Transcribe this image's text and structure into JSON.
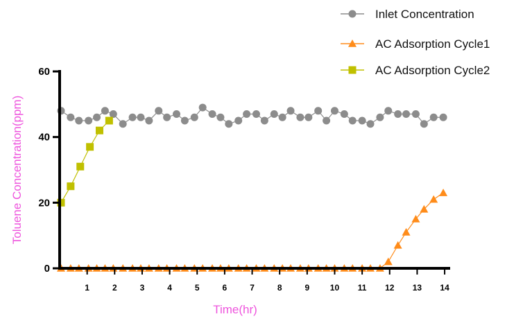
{
  "chart_data": {
    "type": "line",
    "xlabel": "Time(hr)",
    "ylabel": "Toluene Concentration(ppm)",
    "xlim": [
      0,
      14.2
    ],
    "ylim": [
      0,
      60
    ],
    "xticks": [
      1,
      2,
      3,
      4,
      5,
      6,
      7,
      8,
      9,
      10,
      11,
      12,
      13,
      14
    ],
    "yticks": [
      0,
      20,
      40,
      60
    ],
    "legend_position": "top-right",
    "series": [
      {
        "name": "Inlet Concentration",
        "color": "#8c8c8c",
        "marker": "circle",
        "x": [
          0.05,
          0.4,
          0.7,
          1.05,
          1.35,
          1.65,
          1.95,
          2.3,
          2.65,
          2.95,
          3.25,
          3.6,
          3.9,
          4.25,
          4.55,
          4.9,
          5.2,
          5.55,
          5.85,
          6.15,
          6.5,
          6.8,
          7.15,
          7.45,
          7.8,
          8.1,
          8.4,
          8.75,
          9.05,
          9.4,
          9.7,
          10.0,
          10.35,
          10.65,
          11.0,
          11.3,
          11.65,
          11.95,
          12.3,
          12.6,
          12.95,
          13.25,
          13.6,
          13.95
        ],
        "y": [
          48,
          46,
          45,
          45,
          46,
          48,
          47,
          44,
          46,
          46,
          45,
          48,
          46,
          47,
          45,
          46,
          49,
          47,
          46,
          44,
          45,
          47,
          47,
          45,
          47,
          46,
          48,
          46,
          46,
          48,
          45,
          48,
          47,
          45,
          45,
          44,
          46,
          48,
          47,
          47,
          47,
          44,
          46,
          46
        ]
      },
      {
        "name": "AC Adsorption Cycle1",
        "color": "#ff8c1a",
        "marker": "triangle",
        "x": [
          0.05,
          0.4,
          0.7,
          1.05,
          1.35,
          1.65,
          1.95,
          2.3,
          2.65,
          2.95,
          3.25,
          3.6,
          3.9,
          4.25,
          4.55,
          4.9,
          5.2,
          5.55,
          5.85,
          6.15,
          6.5,
          6.8,
          7.15,
          7.45,
          7.8,
          8.1,
          8.4,
          8.75,
          9.05,
          9.4,
          9.7,
          10.0,
          10.35,
          10.65,
          11.0,
          11.3,
          11.65,
          11.95,
          12.3,
          12.6,
          12.95,
          13.25,
          13.6,
          13.95
        ],
        "y": [
          0,
          0,
          0,
          0,
          0,
          0,
          0,
          0,
          0,
          0,
          0,
          0,
          0,
          0,
          0,
          0,
          0,
          0,
          0,
          0,
          0,
          0,
          0,
          0,
          0,
          0,
          0,
          0,
          0,
          0,
          0,
          0,
          0,
          0,
          0,
          0,
          0,
          2,
          7,
          11,
          15,
          18,
          21,
          23
        ]
      },
      {
        "name": "AC Adsorption Cycle2",
        "color": "#c0c000",
        "marker": "square",
        "x": [
          0.05,
          0.4,
          0.75,
          1.1,
          1.45,
          1.8
        ],
        "y": [
          20,
          25,
          31,
          37,
          42,
          45
        ]
      }
    ]
  }
}
